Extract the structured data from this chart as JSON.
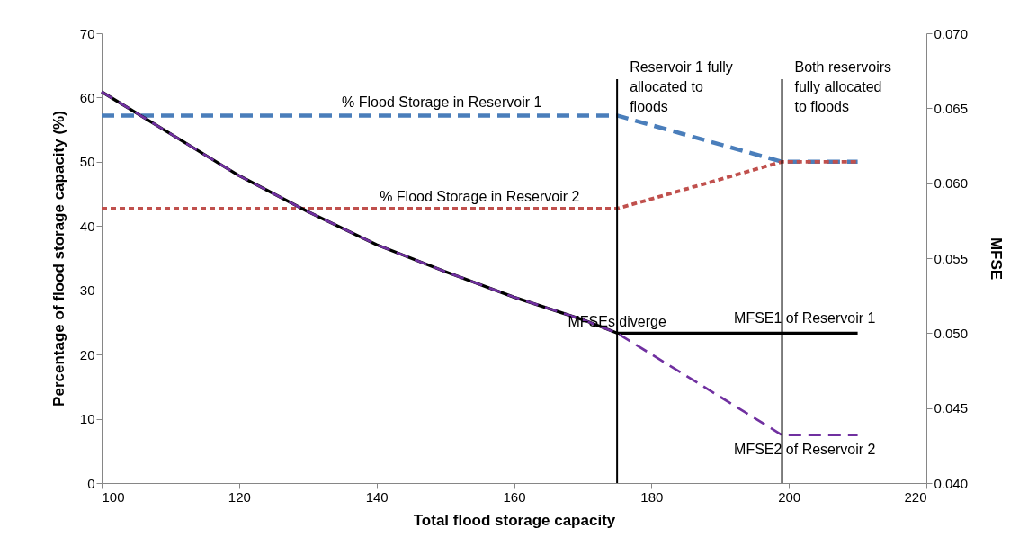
{
  "chart_data": {
    "type": "line",
    "xlabel": "Total  flood storage capacity",
    "ylabel": "Percentage of flood storage capacity (%)",
    "y2label": "MFSE",
    "xlim": [
      100,
      220
    ],
    "xticks": [
      100,
      120,
      140,
      160,
      180,
      200,
      220
    ],
    "ylim": [
      0,
      70
    ],
    "yticks": [
      0,
      10,
      20,
      30,
      40,
      50,
      60,
      70
    ],
    "y2lim": [
      0.04,
      0.07
    ],
    "y2ticks": [
      {
        "value": 0.04,
        "label": "0.040"
      },
      {
        "value": 0.045,
        "label": "0.045"
      },
      {
        "value": 0.05,
        "label": "0.050"
      },
      {
        "value": 0.055,
        "label": "0.055"
      },
      {
        "value": 0.06,
        "label": "0.060"
      },
      {
        "value": 0.065,
        "label": "0.065"
      },
      {
        "value": 0.07,
        "label": "0.070"
      }
    ],
    "series": [
      {
        "name": "% Flood Storage in Reservoir 1",
        "color": "#4a7ebb",
        "line_style": "dashed",
        "x": [
          100,
          175,
          199,
          210
        ],
        "values": [
          57.2,
          57.2,
          50,
          50
        ]
      },
      {
        "name": "% Flood Storage in Reservoir 2",
        "color": "#c0504d",
        "line_style": "dotted",
        "x": [
          100,
          175,
          199,
          210
        ],
        "values": [
          42.7,
          42.7,
          50,
          50
        ]
      },
      {
        "name": "MFSE1 of Reservoir 1",
        "color": "#000000",
        "line_style": "solid",
        "axis": "y2",
        "x": [
          100,
          110,
          120,
          130,
          140,
          150,
          160,
          170,
          175,
          199,
          210
        ],
        "values": [
          0.0661,
          0.0633,
          0.0605,
          0.0581,
          0.0559,
          0.0541,
          0.0524,
          0.0509,
          0.05,
          0.05,
          0.05
        ]
      },
      {
        "name": "MFSE2 of Reservoir 2",
        "color": "#7030a0",
        "line_style": "dashed",
        "axis": "y2",
        "x": [
          100,
          110,
          120,
          130,
          140,
          150,
          160,
          170,
          175,
          199,
          210
        ],
        "values": [
          0.0661,
          0.0633,
          0.0605,
          0.0581,
          0.0559,
          0.0541,
          0.0524,
          0.0509,
          0.05,
          0.0432,
          0.0432
        ]
      }
    ],
    "ref_lines": [
      {
        "axis": "x",
        "value": 175,
        "label": "Reservoir 1 fully allocated to floods",
        "color": "#000000"
      },
      {
        "axis": "x",
        "value": 199,
        "label": "Both reservoirs fully allocated to floods",
        "color": "#000000"
      }
    ],
    "annotations": [
      {
        "text": "MFSEs diverge",
        "x": 175,
        "y": 23.3
      }
    ],
    "grid": false,
    "marker": "none"
  }
}
